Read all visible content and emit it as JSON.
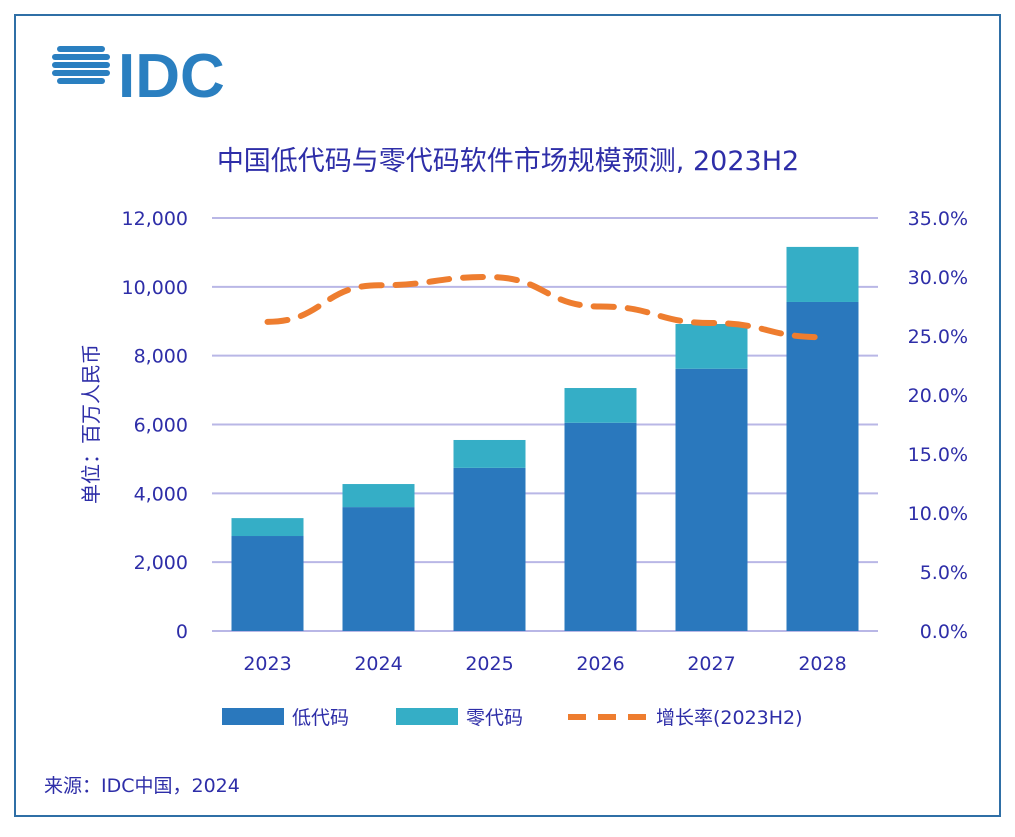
{
  "logo": {
    "text": "IDC",
    "color": "#2a7fc0"
  },
  "source": "来源：IDC中国，2024",
  "chart_data": {
    "type": "bar",
    "stacked": true,
    "title": "中国低代码与零代码软件市场规模预测, 2023H2",
    "ylabel": "单位：百万人民币",
    "categories": [
      "2023",
      "2024",
      "2025",
      "2026",
      "2027",
      "2028"
    ],
    "ylim": [
      0,
      12000
    ],
    "yticks": [
      "0",
      "2,000",
      "4,000",
      "6,000",
      "8,000",
      "10,000",
      "12,000"
    ],
    "y2lim": [
      0,
      35
    ],
    "y2ticks": [
      "0.0%",
      "5.0%",
      "10.0%",
      "15.0%",
      "20.0%",
      "25.0%",
      "30.0%",
      "35.0%"
    ],
    "grid": true,
    "legend_position": "bottom",
    "series": [
      {
        "name": "低代码",
        "type": "bar",
        "color": "#2a78bd",
        "values": [
          2760,
          3600,
          4740,
          6050,
          7620,
          9560
        ]
      },
      {
        "name": "零代码",
        "type": "bar",
        "color": "#35aec6",
        "values": [
          520,
          670,
          810,
          1010,
          1300,
          1600
        ]
      },
      {
        "name": "增长率(2023H2)",
        "type": "line",
        "axis": "right",
        "style": "dashed",
        "color": "#ee7d2f",
        "values": [
          26.2,
          29.3,
          30.0,
          27.5,
          26.1,
          24.9
        ]
      }
    ]
  }
}
